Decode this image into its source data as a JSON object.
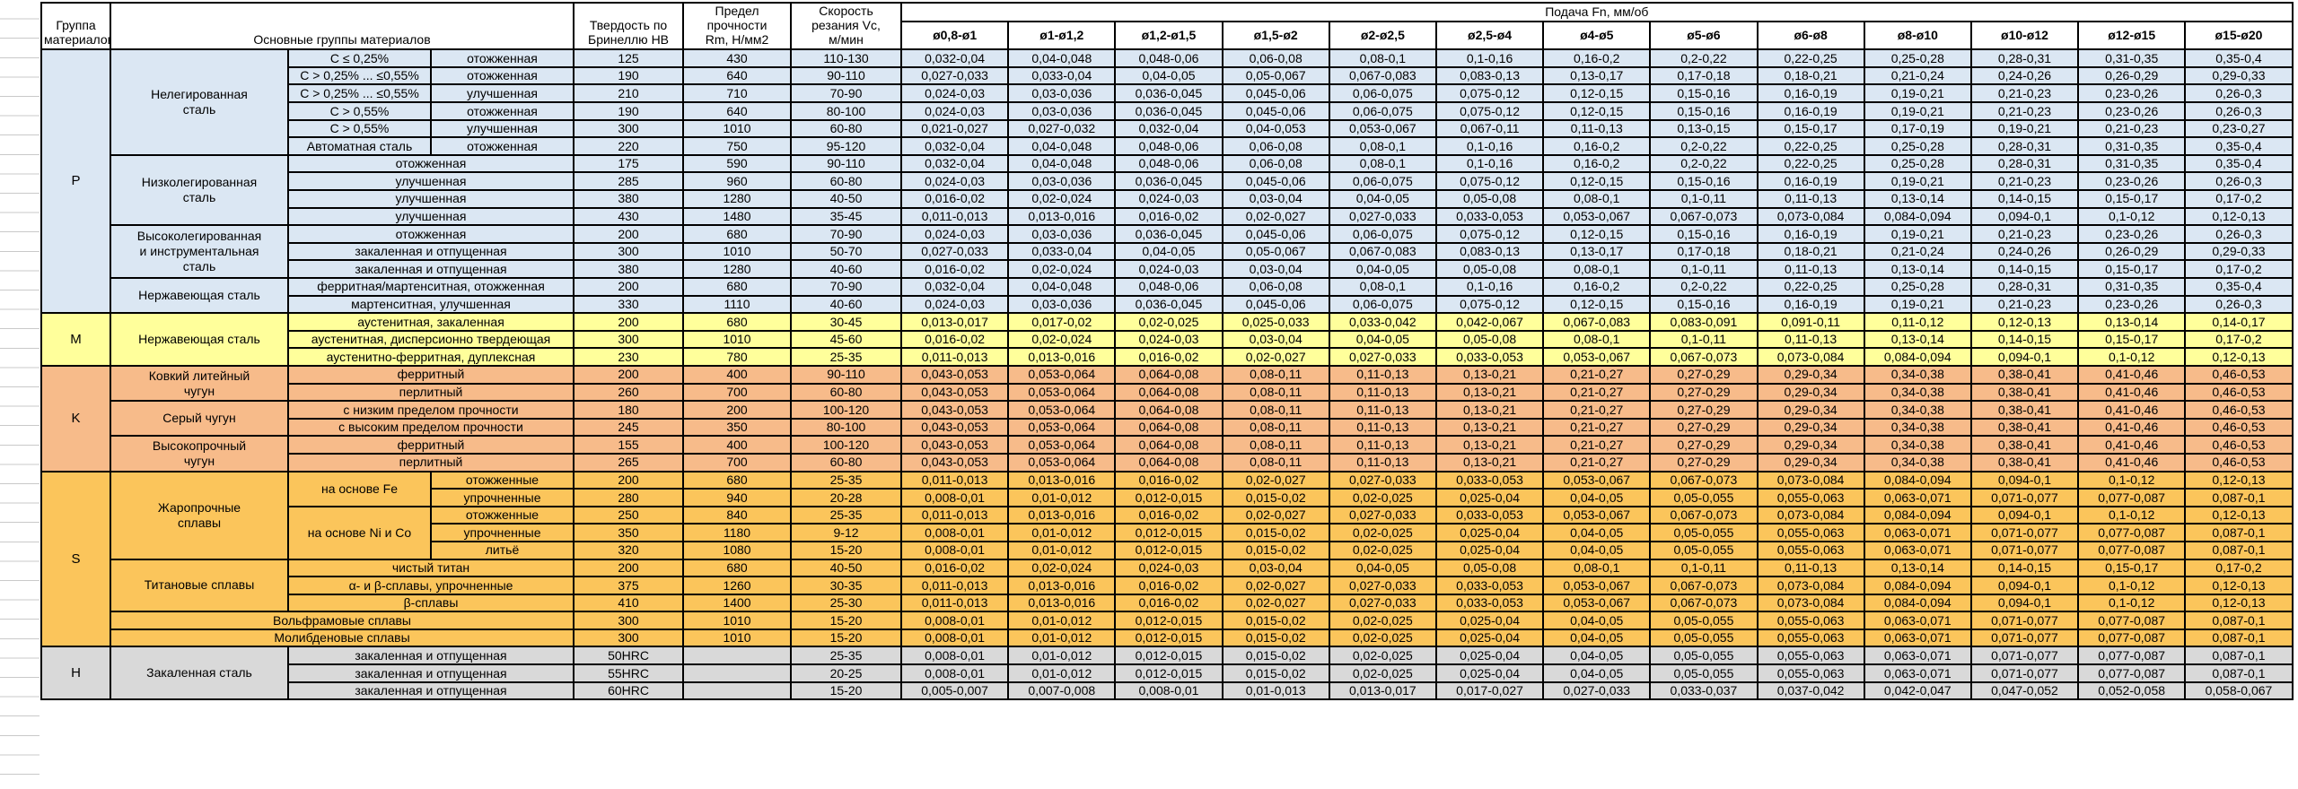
{
  "page": {
    "background": "#FFFFFF"
  },
  "table": {
    "header": {
      "group": "Группа\nматериалов",
      "materials": "Основные группы материалов",
      "hardness": "Твердость по\nБринеллю HB",
      "strength": "Предел\nпрочности\nRm, Н/мм2",
      "speed": "Скорость\nрезания Vc,\nм/мин",
      "feed": "Подача Fn, мм/об",
      "diameters": [
        "ø0,8-ø1",
        "ø1-ø1,2",
        "ø1,2-ø1,5",
        "ø1,5-ø2",
        "ø2-ø2,5",
        "ø2,5-ø4",
        "ø4-ø5",
        "ø5-ø6",
        "ø6-ø8",
        "ø8-ø10",
        "ø10-ø12",
        "ø12-ø15",
        "ø15-ø20"
      ]
    },
    "feed_patterns": {
      "F1": [
        "0,032-0,04",
        "0,04-0,048",
        "0,048-0,06",
        "0,06-0,08",
        "0,08-0,1",
        "0,1-0,16",
        "0,16-0,2",
        "0,2-0,22",
        "0,22-0,25",
        "0,25-0,28",
        "0,28-0,31",
        "0,31-0,35",
        "0,35-0,4"
      ],
      "F2": [
        "0,027-0,033",
        "0,033-0,04",
        "0,04-0,05",
        "0,05-0,067",
        "0,067-0,083",
        "0,083-0,13",
        "0,13-0,17",
        "0,17-0,18",
        "0,18-0,21",
        "0,21-0,24",
        "0,24-0,26",
        "0,26-0,29",
        "0,29-0,33"
      ],
      "F3": [
        "0,024-0,03",
        "0,03-0,036",
        "0,036-0,045",
        "0,045-0,06",
        "0,06-0,075",
        "0,075-0,12",
        "0,12-0,15",
        "0,15-0,16",
        "0,16-0,19",
        "0,19-0,21",
        "0,21-0,23",
        "0,23-0,26",
        "0,26-0,3"
      ],
      "F4": [
        "0,021-0,027",
        "0,027-0,032",
        "0,032-0,04",
        "0,04-0,053",
        "0,053-0,067",
        "0,067-0,11",
        "0,11-0,13",
        "0,13-0,15",
        "0,15-0,17",
        "0,17-0,19",
        "0,19-0,21",
        "0,21-0,23",
        "0,23-0,27"
      ],
      "F5": [
        "0,016-0,02",
        "0,02-0,024",
        "0,024-0,03",
        "0,03-0,04",
        "0,04-0,05",
        "0,05-0,08",
        "0,08-0,1",
        "0,1-0,11",
        "0,11-0,13",
        "0,13-0,14",
        "0,14-0,15",
        "0,15-0,17",
        "0,17-0,2"
      ],
      "F6": [
        "0,011-0,013",
        "0,013-0,016",
        "0,016-0,02",
        "0,02-0,027",
        "0,027-0,033",
        "0,033-0,053",
        "0,053-0,067",
        "0,067-0,073",
        "0,073-0,084",
        "0,084-0,094",
        "0,094-0,1",
        "0,1-0,12",
        "0,12-0,13"
      ],
      "F7": [
        "0,013-0,017",
        "0,017-0,02",
        "0,02-0,025",
        "0,025-0,033",
        "0,033-0,042",
        "0,042-0,067",
        "0,067-0,083",
        "0,083-0,091",
        "0,091-0,11",
        "0,11-0,12",
        "0,12-0,13",
        "0,13-0,14",
        "0,14-0,17"
      ],
      "F8": [
        "0,043-0,053",
        "0,053-0,064",
        "0,064-0,08",
        "0,08-0,11",
        "0,11-0,13",
        "0,13-0,21",
        "0,21-0,27",
        "0,27-0,29",
        "0,29-0,34",
        "0,34-0,38",
        "0,38-0,41",
        "0,41-0,46",
        "0,46-0,53"
      ],
      "F9": [
        "0,008-0,01",
        "0,01-0,012",
        "0,012-0,015",
        "0,015-0,02",
        "0,02-0,025",
        "0,025-0,04",
        "0,04-0,05",
        "0,05-0,055",
        "0,055-0,063",
        "0,063-0,071",
        "0,071-0,077",
        "0,077-0,087",
        "0,087-0,1"
      ],
      "F10": [
        "0,005-0,007",
        "0,007-0,008",
        "0,008-0,01",
        "0,01-0,013",
        "0,013-0,017",
        "0,017-0,027",
        "0,027-0,033",
        "0,033-0,037",
        "0,037-0,042",
        "0,042-0,047",
        "0,047-0,052",
        "0,052-0,058",
        "0,058-0,067"
      ]
    },
    "groups": [
      {
        "code": "P",
        "color": "#DBE7F3",
        "blocks": [
          {
            "name": "Нелегированная\nсталь",
            "rows": [
              {
                "labels": [
                  {
                    "t": "C ≤ 0,25%"
                  },
                  {
                    "t": "отожженная"
                  }
                ],
                "hb": "125",
                "rm": "430",
                "vc": "110-130",
                "f": "F1"
              },
              {
                "labels": [
                  {
                    "t": "C > 0,25% ... ≤0,55%"
                  },
                  {
                    "t": "отожженная"
                  }
                ],
                "hb": "190",
                "rm": "640",
                "vc": "90-110",
                "f": "F2"
              },
              {
                "labels": [
                  {
                    "t": "C > 0,25% ... ≤0,55%"
                  },
                  {
                    "t": "улучшенная"
                  }
                ],
                "hb": "210",
                "rm": "710",
                "vc": "70-90",
                "f": "F3"
              },
              {
                "labels": [
                  {
                    "t": "C > 0,55%"
                  },
                  {
                    "t": "отожженная"
                  }
                ],
                "hb": "190",
                "rm": "640",
                "vc": "80-100",
                "f": "F3"
              },
              {
                "labels": [
                  {
                    "t": "C > 0,55%"
                  },
                  {
                    "t": "улучшенная"
                  }
                ],
                "hb": "300",
                "rm": "1010",
                "vc": "60-80",
                "f": "F4"
              },
              {
                "labels": [
                  {
                    "t": "Автоматная сталь"
                  },
                  {
                    "t": "отожженная"
                  }
                ],
                "hb": "220",
                "rm": "750",
                "vc": "95-120",
                "f": "F1"
              }
            ]
          },
          {
            "name": "Низколегированная\nсталь",
            "rows": [
              {
                "labels": [
                  {
                    "t": "отожженная",
                    "cs": 2
                  }
                ],
                "hb": "175",
                "rm": "590",
                "vc": "90-110",
                "f": "F1"
              },
              {
                "labels": [
                  {
                    "t": "улучшенная",
                    "cs": 2
                  }
                ],
                "hb": "285",
                "rm": "960",
                "vc": "60-80",
                "f": "F3"
              },
              {
                "labels": [
                  {
                    "t": "улучшенная",
                    "cs": 2
                  }
                ],
                "hb": "380",
                "rm": "1280",
                "vc": "40-50",
                "f": "F5"
              },
              {
                "labels": [
                  {
                    "t": "улучшенная",
                    "cs": 2
                  }
                ],
                "hb": "430",
                "rm": "1480",
                "vc": "35-45",
                "f": "F6"
              }
            ]
          },
          {
            "name": "Высоколегированная\nи инструментальная\nсталь",
            "rows": [
              {
                "labels": [
                  {
                    "t": "отожженная",
                    "cs": 2
                  }
                ],
                "hb": "200",
                "rm": "680",
                "vc": "70-90",
                "f": "F3"
              },
              {
                "labels": [
                  {
                    "t": "закаленная и отпущенная",
                    "cs": 2
                  }
                ],
                "hb": "300",
                "rm": "1010",
                "vc": "50-70",
                "f": "F2"
              },
              {
                "labels": [
                  {
                    "t": "закаленная и отпущенная",
                    "cs": 2
                  }
                ],
                "hb": "380",
                "rm": "1280",
                "vc": "40-60",
                "f": "F5"
              }
            ]
          },
          {
            "name": "Нержавеющая сталь",
            "rows": [
              {
                "labels": [
                  {
                    "t": "ферритная/мартенситная, отожженная",
                    "cs": 2
                  }
                ],
                "hb": "200",
                "rm": "680",
                "vc": "70-90",
                "f": "F1"
              },
              {
                "labels": [
                  {
                    "t": "мартенситная, улучшенная",
                    "cs": 2
                  }
                ],
                "hb": "330",
                "rm": "1110",
                "vc": "40-60",
                "f": "F3"
              }
            ]
          }
        ]
      },
      {
        "code": "M",
        "color": "#FFFF9B",
        "blocks": [
          {
            "name": "Нержавеющая сталь",
            "rows": [
              {
                "labels": [
                  {
                    "t": "аустенитная, закаленная",
                    "cs": 2
                  }
                ],
                "hb": "200",
                "rm": "680",
                "vc": "30-45",
                "f": "F7"
              },
              {
                "labels": [
                  {
                    "t": "аустенитная, дисперсионно твердеющая",
                    "cs": 2
                  }
                ],
                "hb": "300",
                "rm": "1010",
                "vc": "45-60",
                "f": "F5"
              },
              {
                "labels": [
                  {
                    "t": "аустенитно-ферритная, дуплексная",
                    "cs": 2
                  }
                ],
                "hb": "230",
                "rm": "780",
                "vc": "25-35",
                "f": "F6"
              }
            ]
          }
        ]
      },
      {
        "code": "K",
        "color": "#F7BB8A",
        "blocks": [
          {
            "name": "Ковкий литейный\nчугун",
            "rows": [
              {
                "labels": [
                  {
                    "t": "ферритный",
                    "cs": 2
                  }
                ],
                "hb": "200",
                "rm": "400",
                "vc": "90-110",
                "f": "F8"
              },
              {
                "labels": [
                  {
                    "t": "перлитный",
                    "cs": 2
                  }
                ],
                "hb": "260",
                "rm": "700",
                "vc": "60-80",
                "f": "F8"
              }
            ]
          },
          {
            "name": "Серый чугун",
            "rows": [
              {
                "labels": [
                  {
                    "t": "с низким пределом прочности",
                    "cs": 2
                  }
                ],
                "hb": "180",
                "rm": "200",
                "vc": "100-120",
                "f": "F8"
              },
              {
                "labels": [
                  {
                    "t": "с высоким пределом прочности",
                    "cs": 2
                  }
                ],
                "hb": "245",
                "rm": "350",
                "vc": "80-100",
                "f": "F8"
              }
            ]
          },
          {
            "name": "Высокопрочный\nчугун",
            "rows": [
              {
                "labels": [
                  {
                    "t": "ферритный",
                    "cs": 2
                  }
                ],
                "hb": "155",
                "rm": "400",
                "vc": "100-120",
                "f": "F8"
              },
              {
                "labels": [
                  {
                    "t": "перлитный",
                    "cs": 2
                  }
                ],
                "hb": "265",
                "rm": "700",
                "vc": "60-80",
                "f": "F8"
              }
            ]
          }
        ]
      },
      {
        "code": "S",
        "color": "#FBC55B",
        "blocks": [
          {
            "name": "Жаропрочные\nсплавы",
            "rows": [
              {
                "labels": [
                  {
                    "t": "на основе Fe",
                    "rs": 2
                  },
                  {
                    "t": "отожженные"
                  }
                ],
                "hb": "200",
                "rm": "680",
                "vc": "25-35",
                "f": "F6"
              },
              {
                "labels": [
                  {
                    "t": "упрочненные"
                  }
                ],
                "hb": "280",
                "rm": "940",
                "vc": "20-28",
                "f": "F9"
              },
              {
                "labels": [
                  {
                    "t": "на основе Ni и Co",
                    "rs": 3
                  },
                  {
                    "t": "отожженные"
                  }
                ],
                "hb": "250",
                "rm": "840",
                "vc": "25-35",
                "f": "F6"
              },
              {
                "labels": [
                  {
                    "t": "упрочненные"
                  }
                ],
                "hb": "350",
                "rm": "1180",
                "vc": "9-12",
                "f": "F9"
              },
              {
                "labels": [
                  {
                    "t": "литьё"
                  }
                ],
                "hb": "320",
                "rm": "1080",
                "vc": "15-20",
                "f": "F9"
              }
            ]
          },
          {
            "name": "Титановые сплавы",
            "rows": [
              {
                "labels": [
                  {
                    "t": "чистый титан",
                    "cs": 2
                  }
                ],
                "hb": "200",
                "rm": "680",
                "vc": "40-50",
                "f": "F5"
              },
              {
                "labels": [
                  {
                    "t": "α- и β-сплавы, упрочненные",
                    "cs": 2
                  }
                ],
                "hb": "375",
                "rm": "1260",
                "vc": "30-35",
                "f": "F6"
              },
              {
                "labels": [
                  {
                    "t": "β-сплавы",
                    "cs": 2
                  }
                ],
                "hb": "410",
                "rm": "1400",
                "vc": "25-30",
                "f": "F6"
              }
            ]
          },
          {
            "rows": [
              {
                "labels": [
                  {
                    "t": "Вольфрамовые сплавы",
                    "cs": 3
                  }
                ],
                "hb": "300",
                "rm": "1010",
                "vc": "15-20",
                "f": "F9"
              }
            ]
          },
          {
            "rows": [
              {
                "labels": [
                  {
                    "t": "Молибденовые сплавы",
                    "cs": 3
                  }
                ],
                "hb": "300",
                "rm": "1010",
                "vc": "15-20",
                "f": "F9"
              }
            ]
          }
        ]
      },
      {
        "code": "H",
        "color": "#D9D9D9",
        "blocks": [
          {
            "name": "Закаленная сталь",
            "rows": [
              {
                "labels": [
                  {
                    "t": "закаленная и отпущенная",
                    "cs": 2
                  }
                ],
                "hb": "50HRC",
                "rm": "",
                "vc": "25-35",
                "f": "F9"
              },
              {
                "labels": [
                  {
                    "t": "закаленная и отпущенная",
                    "cs": 2
                  }
                ],
                "hb": "55HRC",
                "rm": "",
                "vc": "20-25",
                "f": "F9"
              },
              {
                "labels": [
                  {
                    "t": "закаленная и отпущенная",
                    "cs": 2
                  }
                ],
                "hb": "60HRC",
                "rm": "",
                "vc": "15-20",
                "f": "F10"
              }
            ]
          }
        ]
      }
    ]
  }
}
